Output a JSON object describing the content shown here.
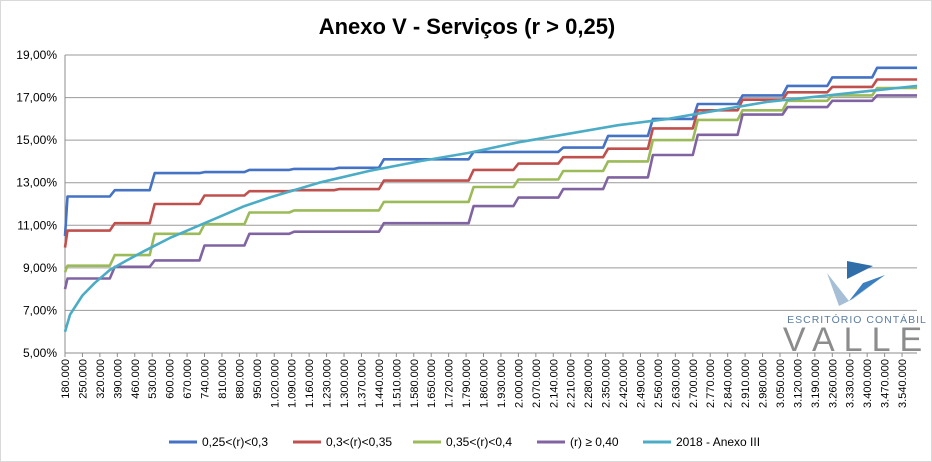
{
  "chart_data": {
    "type": "line",
    "title": "Anexo V - Serviços (r > 0,25)",
    "y_ticks": [
      "5,00%",
      "7,00%",
      "9,00%",
      "11,00%",
      "13,00%",
      "15,00%",
      "17,00%",
      "19,00%"
    ],
    "ylim": [
      5,
      19
    ],
    "x_tick_labels": [
      "180.000",
      "250.000",
      "320.000",
      "390.000",
      "460.000",
      "530.000",
      "600.000",
      "670.000",
      "740.000",
      "810.000",
      "880.000",
      "950.000",
      "1.020.000",
      "1.090.000",
      "1.160.000",
      "1.230.000",
      "1.300.000",
      "1.370.000",
      "1.440.000",
      "1.510.000",
      "1.580.000",
      "1.650.000",
      "1.720.000",
      "1.790.000",
      "1.860.000",
      "1.930.000",
      "2.000.000",
      "2.070.000",
      "2.140.000",
      "2.210.000",
      "2.280.000",
      "2.350.000",
      "2.420.000",
      "2.490.000",
      "2.560.000",
      "2.630.000",
      "2.700.000",
      "2.770.000",
      "2.840.000",
      "2.910.000",
      "2.980.000",
      "3.050.000",
      "3.120.000",
      "3.190.000",
      "3.260.000",
      "3.330.000",
      "3.400.000",
      "3.470.000",
      "3.540.000"
    ],
    "xlim": [
      180000,
      3600000
    ],
    "grid": "horizontal",
    "legend_position": "bottom",
    "series": [
      {
        "name": "0,25<(r)<0,3",
        "color": "#4472c4",
        "x": [
          180000,
          190000,
          360000,
          380000,
          520000,
          540000,
          720000,
          740000,
          900000,
          920000,
          1080000,
          1100000,
          1260000,
          1280000,
          1440000,
          1460000,
          1800000,
          1820000,
          2160000,
          2180000,
          2340000,
          2360000,
          2520000,
          2540000,
          2700000,
          2720000,
          2880000,
          2900000,
          3060000,
          3080000,
          3240000,
          3260000,
          3420000,
          3440000,
          3600000
        ],
        "y": [
          10.5,
          12.35,
          12.35,
          12.65,
          12.65,
          13.45,
          13.45,
          13.5,
          13.5,
          13.6,
          13.6,
          13.65,
          13.65,
          13.7,
          13.7,
          14.1,
          14.1,
          14.45,
          14.45,
          14.65,
          14.65,
          15.2,
          15.2,
          16.0,
          16.0,
          16.7,
          16.7,
          17.1,
          17.1,
          17.55,
          17.55,
          17.95,
          17.95,
          18.4,
          18.4
        ]
      },
      {
        "name": "0,3<(r)<0,35",
        "color": "#c0504d",
        "x": [
          180000,
          190000,
          360000,
          380000,
          520000,
          540000,
          720000,
          740000,
          900000,
          920000,
          1080000,
          1100000,
          1260000,
          1280000,
          1440000,
          1460000,
          1800000,
          1820000,
          1980000,
          2000000,
          2160000,
          2180000,
          2340000,
          2360000,
          2520000,
          2540000,
          2700000,
          2720000,
          2880000,
          2900000,
          3060000,
          3080000,
          3240000,
          3260000,
          3420000,
          3440000,
          3600000
        ],
        "y": [
          9.95,
          10.75,
          10.75,
          11.1,
          11.1,
          12.0,
          12.0,
          12.4,
          12.4,
          12.6,
          12.6,
          12.65,
          12.65,
          12.7,
          12.7,
          13.1,
          13.1,
          13.6,
          13.6,
          13.9,
          13.9,
          14.2,
          14.2,
          14.6,
          14.6,
          15.55,
          15.55,
          16.4,
          16.4,
          16.9,
          16.9,
          17.25,
          17.25,
          17.5,
          17.5,
          17.85,
          17.85
        ]
      },
      {
        "name": "0,35<(r)<0,4",
        "color": "#9bbb59",
        "x": [
          180000,
          190000,
          360000,
          380000,
          520000,
          540000,
          720000,
          740000,
          900000,
          920000,
          1080000,
          1100000,
          1440000,
          1460000,
          1800000,
          1820000,
          1980000,
          2000000,
          2160000,
          2180000,
          2340000,
          2360000,
          2520000,
          2540000,
          2700000,
          2720000,
          2880000,
          2900000,
          3060000,
          3080000,
          3240000,
          3260000,
          3420000,
          3440000,
          3600000
        ],
        "y": [
          8.8,
          9.1,
          9.1,
          9.6,
          9.6,
          10.6,
          10.6,
          11.05,
          11.05,
          11.6,
          11.6,
          11.7,
          11.7,
          12.1,
          12.1,
          12.8,
          12.8,
          13.15,
          13.15,
          13.55,
          13.55,
          14.0,
          14.0,
          15.0,
          15.0,
          15.95,
          15.95,
          16.4,
          16.4,
          16.85,
          16.85,
          17.1,
          17.1,
          17.45,
          17.45
        ]
      },
      {
        "name": "(r) ≥ 0,40",
        "color": "#8064a2",
        "x": [
          180000,
          190000,
          360000,
          380000,
          520000,
          540000,
          720000,
          740000,
          900000,
          920000,
          1080000,
          1100000,
          1440000,
          1460000,
          1800000,
          1820000,
          1980000,
          2000000,
          2160000,
          2180000,
          2340000,
          2360000,
          2520000,
          2540000,
          2700000,
          2720000,
          2880000,
          2900000,
          3060000,
          3080000,
          3240000,
          3260000,
          3420000,
          3440000,
          3600000
        ],
        "y": [
          8.0,
          8.5,
          8.5,
          9.05,
          9.05,
          9.35,
          9.35,
          10.05,
          10.05,
          10.6,
          10.6,
          10.7,
          10.7,
          11.1,
          11.1,
          11.9,
          11.9,
          12.3,
          12.3,
          12.7,
          12.7,
          13.25,
          13.25,
          14.3,
          14.3,
          15.25,
          15.25,
          16.2,
          16.2,
          16.55,
          16.55,
          16.85,
          16.85,
          17.1,
          17.1
        ]
      },
      {
        "name": "2018 - Anexo III",
        "color": "#4bacc6",
        "x": [
          180000,
          200000,
          250000,
          300000,
          360000,
          420000,
          500000,
          600000,
          700000,
          800000,
          900000,
          1000000,
          1200000,
          1400000,
          1600000,
          1800000,
          2000000,
          2200000,
          2400000,
          2600000,
          2800000,
          3000000,
          3200000,
          3400000,
          3600000
        ],
        "y": [
          6.0,
          6.8,
          7.7,
          8.3,
          8.9,
          9.3,
          9.8,
          10.4,
          10.9,
          11.4,
          11.9,
          12.3,
          13.0,
          13.55,
          14.0,
          14.4,
          14.9,
          15.3,
          15.7,
          16.0,
          16.4,
          16.8,
          17.05,
          17.3,
          17.55
        ]
      }
    ]
  },
  "logo": {
    "line1": "ESCRITÓRIO CONTÁBIL",
    "line2": "VALLE"
  }
}
